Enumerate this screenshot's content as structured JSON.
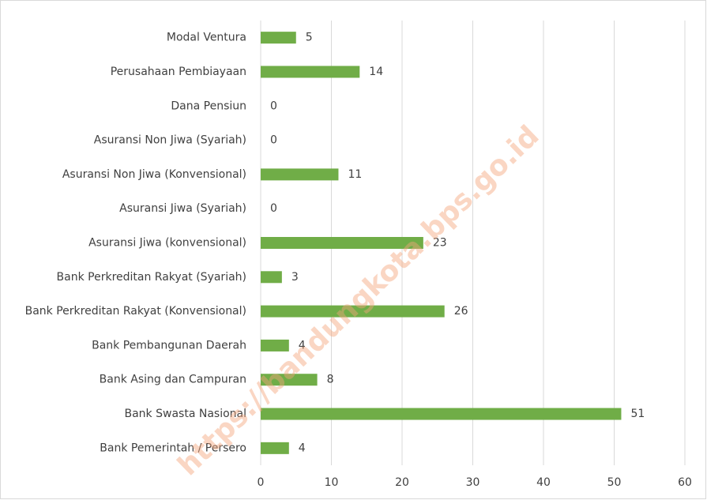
{
  "chart_data": {
    "type": "bar",
    "orientation": "horizontal",
    "categories": [
      "Modal Ventura",
      "Perusahaan Pembiayaan",
      "Dana Pensiun",
      "Asuransi Non Jiwa (Syariah)",
      "Asuransi Non Jiwa (Konvensional)",
      "Asuransi Jiwa (Syariah)",
      "Asuransi Jiwa (konvensional)",
      "Bank Perkreditan Rakyat (Syariah)",
      "Bank Perkreditan Rakyat (Konvensional)",
      "Bank Pembangunan Daerah",
      "Bank Asing dan Campuran",
      "Bank Swasta Nasional",
      "Bank Pemerintah / Persero"
    ],
    "values": [
      5,
      14,
      0,
      0,
      11,
      0,
      23,
      3,
      26,
      4,
      8,
      51,
      4
    ],
    "color": "#70ad47",
    "xlim": [
      0,
      60
    ],
    "xticks": [
      0,
      10,
      20,
      30,
      40,
      50,
      60
    ],
    "grid": true,
    "watermark": "https://bandungkota.bps.go.id"
  }
}
